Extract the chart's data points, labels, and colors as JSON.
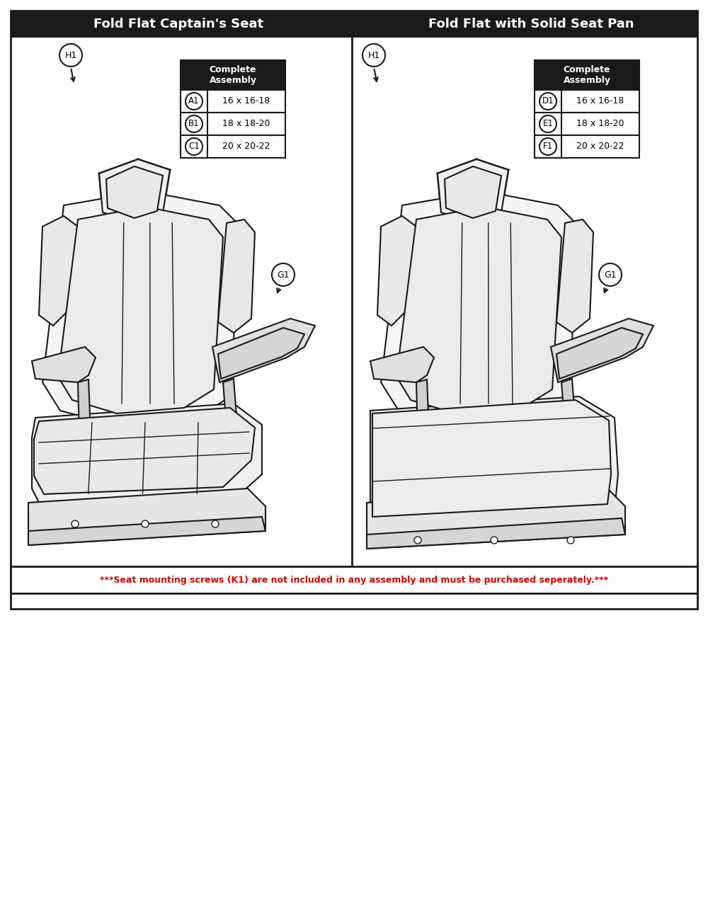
{
  "title_left": "Fold Flat Captain's Seat",
  "title_right": "Fold Flat with Solid Seat Pan",
  "title_bg": "#1a1a1a",
  "title_fg": "#ffffff",
  "table_header": "Complete\nAssembly",
  "left_rows": [
    {
      "label": "A1",
      "value": "16 x 16-18"
    },
    {
      "label": "B1",
      "value": "18 x 18-20"
    },
    {
      "label": "C1",
      "value": "20 x 20-22"
    }
  ],
  "right_rows": [
    {
      "label": "D1",
      "value": "16 x 16-18"
    },
    {
      "label": "E1",
      "value": "18 x 18-20"
    },
    {
      "label": "F1",
      "value": "20 x 20-22"
    }
  ],
  "footnote": "***Seat mounting screws (K1) are not included in any assembly and must be purchased seperately.***",
  "footnote_color": "#cc0000",
  "border_color": "#1a1a1a",
  "h1_label": "H1",
  "g1_label": "G1",
  "outer_border": "#1a1a1a",
  "fig_width": 10.0,
  "fig_height": 12.67
}
